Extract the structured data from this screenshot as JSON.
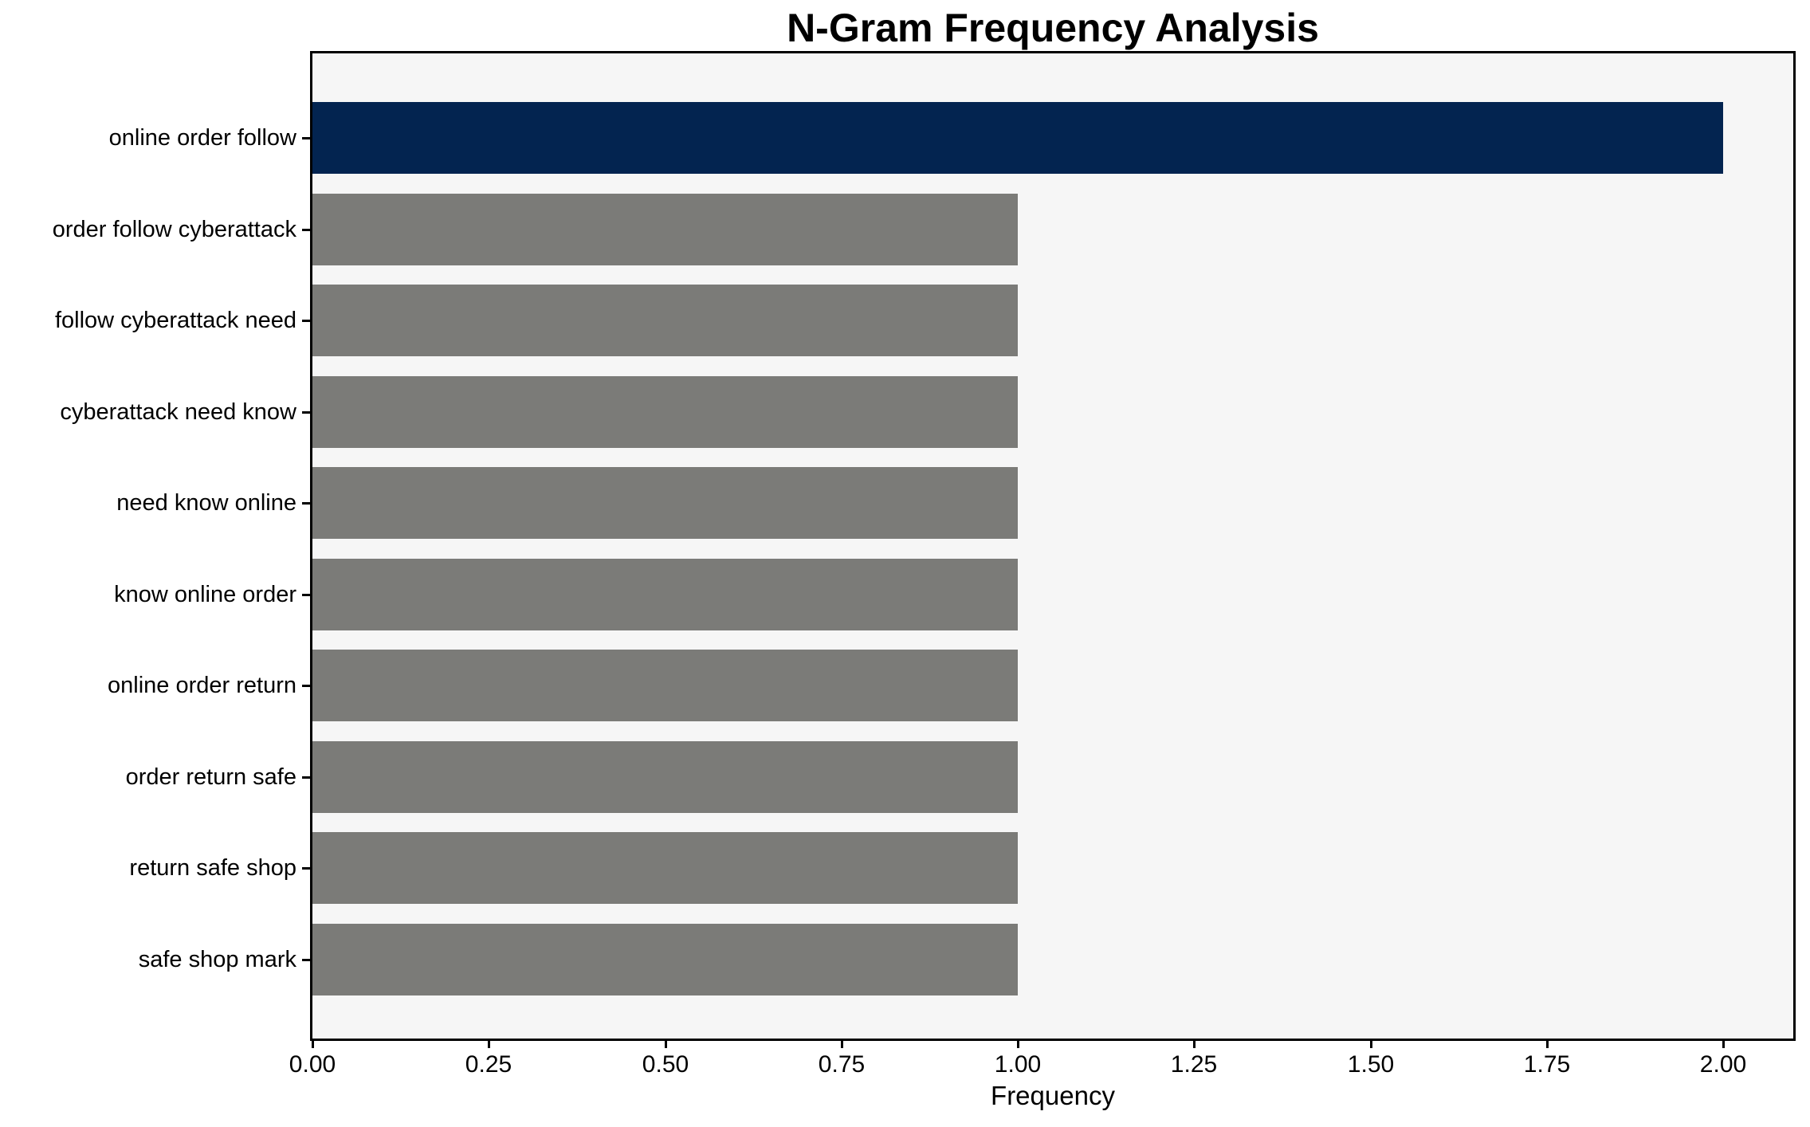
{
  "chart_data": {
    "type": "bar",
    "orientation": "horizontal",
    "title": "N-Gram Frequency Analysis",
    "xlabel": "Frequency",
    "ylabel": "",
    "categories": [
      "online order follow",
      "order follow cyberattack",
      "follow cyberattack need",
      "cyberattack need know",
      "need know online",
      "know online order",
      "online order return",
      "order return safe",
      "return safe shop",
      "safe shop mark"
    ],
    "values": [
      2,
      1,
      1,
      1,
      1,
      1,
      1,
      1,
      1,
      1
    ],
    "bar_colors": [
      "#032450",
      "#7b7b78",
      "#7b7b78",
      "#7b7b78",
      "#7b7b78",
      "#7b7b78",
      "#7b7b78",
      "#7b7b78",
      "#7b7b78",
      "#7b7b78"
    ],
    "xticks": [
      "0.00",
      "0.25",
      "0.50",
      "0.75",
      "1.00",
      "1.25",
      "1.50",
      "1.75",
      "2.00"
    ],
    "xtick_values": [
      0,
      0.25,
      0.5,
      0.75,
      1.0,
      1.25,
      1.5,
      1.75,
      2.0
    ],
    "xlim": [
      0,
      2.1
    ],
    "grid": false,
    "legend": null,
    "colors": {
      "highlight_bar": "#032450",
      "default_bar": "#7b7b78",
      "plot_background": "#f6f6f6",
      "figure_background": "#ffffff",
      "spine": "#000000",
      "text": "#000000"
    }
  }
}
